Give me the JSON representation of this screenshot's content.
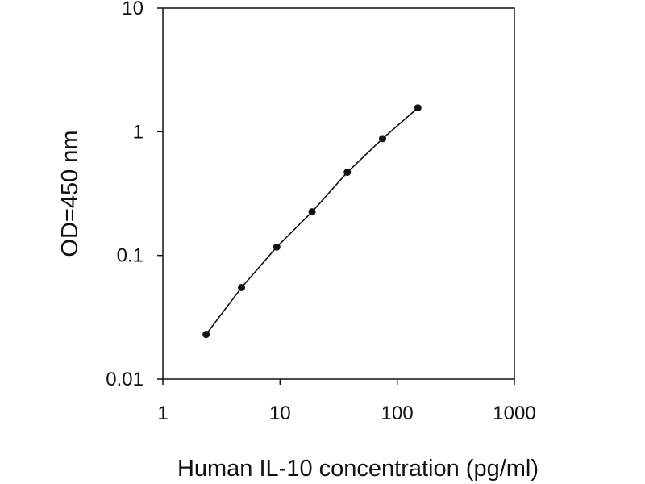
{
  "chart_data": {
    "type": "scatter",
    "title": "",
    "xlabel": "Human IL-10 concentration (pg/ml)",
    "ylabel": "OD=450 nm",
    "x_scale": "log",
    "y_scale": "log",
    "xlim": [
      1,
      1000
    ],
    "ylim": [
      0.01,
      10
    ],
    "x_ticks": [
      1,
      10,
      100,
      1000
    ],
    "x_tick_labels": [
      "1",
      "10",
      "100",
      "1000"
    ],
    "y_ticks": [
      0.01,
      0.1,
      1,
      10
    ],
    "y_tick_labels": [
      "0.01",
      "0.1",
      "1",
      "10"
    ],
    "grid": false,
    "legend": "none",
    "series": [
      {
        "x": [
          2.34,
          4.69,
          9.38,
          18.75,
          37.5,
          75,
          150
        ],
        "y": [
          0.023,
          0.055,
          0.117,
          0.225,
          0.47,
          0.88,
          1.56
        ],
        "marker": "circle",
        "line": true,
        "color": "#111111"
      }
    ]
  }
}
